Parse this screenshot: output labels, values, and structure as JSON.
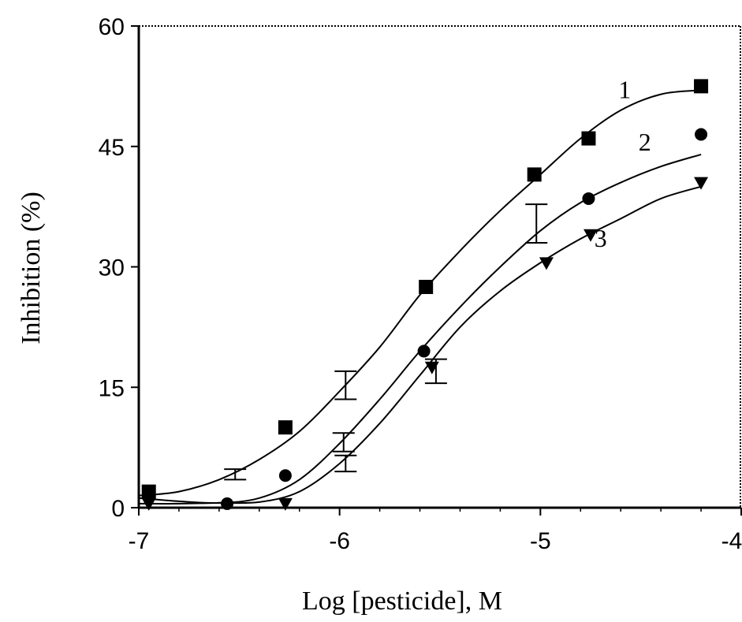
{
  "chart_data": {
    "type": "scatter",
    "xlabel": "Log [pesticide], M",
    "ylabel": "Inhibition (%)",
    "xlim": [
      -7,
      -4
    ],
    "ylim": [
      0,
      60
    ],
    "x_ticks": [
      -7,
      -6,
      -5,
      -4
    ],
    "x_tick_labels": [
      "-7",
      "-6",
      "-5",
      "-4"
    ],
    "y_ticks": [
      0,
      15,
      30,
      45,
      60
    ],
    "y_tick_labels": [
      "0",
      "15",
      "30",
      "45",
      "60"
    ],
    "grid": false,
    "legend": "none",
    "series": [
      {
        "name": "1",
        "marker": "square",
        "x": [
          -6.95,
          -6.27,
          -5.57,
          -5.03,
          -4.76,
          -4.2
        ],
        "y": [
          2.0,
          10.0,
          27.5,
          41.5,
          46.0,
          52.5
        ],
        "curve": [
          [
            -7.0,
            1.5
          ],
          [
            -6.8,
            2.0
          ],
          [
            -6.6,
            3.5
          ],
          [
            -6.4,
            6.0
          ],
          [
            -6.2,
            9.5
          ],
          [
            -6.0,
            14.5
          ],
          [
            -5.8,
            20.0
          ],
          [
            -5.6,
            26.5
          ],
          [
            -5.4,
            32.0
          ],
          [
            -5.2,
            37.0
          ],
          [
            -5.0,
            41.5
          ],
          [
            -4.8,
            46.0
          ],
          [
            -4.6,
            49.5
          ],
          [
            -4.4,
            51.5
          ],
          [
            -4.2,
            52.0
          ]
        ],
        "error_bars": [
          {
            "x": -6.52,
            "low": 3.5,
            "high": 4.8
          },
          {
            "x": -5.97,
            "low": 13.5,
            "high": 17.0
          }
        ],
        "label_at": [
          -4.58,
          51.0
        ]
      },
      {
        "name": "2",
        "marker": "circle",
        "x": [
          -6.95,
          -6.56,
          -6.27,
          -5.58,
          -4.76,
          -4.2
        ],
        "y": [
          1.5,
          0.5,
          4.0,
          19.5,
          38.5,
          46.5
        ],
        "curve": [
          [
            -7.0,
            1.2
          ],
          [
            -6.8,
            0.8
          ],
          [
            -6.6,
            0.6
          ],
          [
            -6.4,
            1.2
          ],
          [
            -6.2,
            3.5
          ],
          [
            -6.0,
            8.0
          ],
          [
            -5.8,
            13.5
          ],
          [
            -5.6,
            19.5
          ],
          [
            -5.4,
            25.0
          ],
          [
            -5.2,
            30.0
          ],
          [
            -5.0,
            34.5
          ],
          [
            -4.8,
            38.0
          ],
          [
            -4.6,
            40.5
          ],
          [
            -4.4,
            42.5
          ],
          [
            -4.2,
            44.0
          ]
        ],
        "error_bars": [
          {
            "x": -5.98,
            "low": 7.0,
            "high": 9.3
          },
          {
            "x": -5.02,
            "low": 33.0,
            "high": 37.8
          }
        ],
        "label_at": [
          -4.48,
          44.5
        ]
      },
      {
        "name": "3",
        "marker": "triangle-down",
        "x": [
          -6.95,
          -6.27,
          -5.54,
          -4.97,
          -4.75,
          -4.2
        ],
        "y": [
          0.5,
          0.5,
          17.5,
          30.5,
          34.0,
          40.5
        ],
        "curve": [
          [
            -7.0,
            0.5
          ],
          [
            -6.8,
            0.5
          ],
          [
            -6.6,
            0.6
          ],
          [
            -6.4,
            0.7
          ],
          [
            -6.2,
            2.0
          ],
          [
            -6.0,
            5.5
          ],
          [
            -5.8,
            10.5
          ],
          [
            -5.6,
            16.5
          ],
          [
            -5.4,
            22.5
          ],
          [
            -5.2,
            27.0
          ],
          [
            -5.0,
            30.5
          ],
          [
            -4.8,
            33.5
          ],
          [
            -4.6,
            36.0
          ],
          [
            -4.4,
            38.5
          ],
          [
            -4.2,
            40.0
          ]
        ],
        "error_bars": [
          {
            "x": -5.97,
            "low": 4.5,
            "high": 6.5
          },
          {
            "x": -5.52,
            "low": 15.5,
            "high": 18.5
          }
        ],
        "label_at": [
          -4.7,
          32.5
        ]
      }
    ]
  }
}
